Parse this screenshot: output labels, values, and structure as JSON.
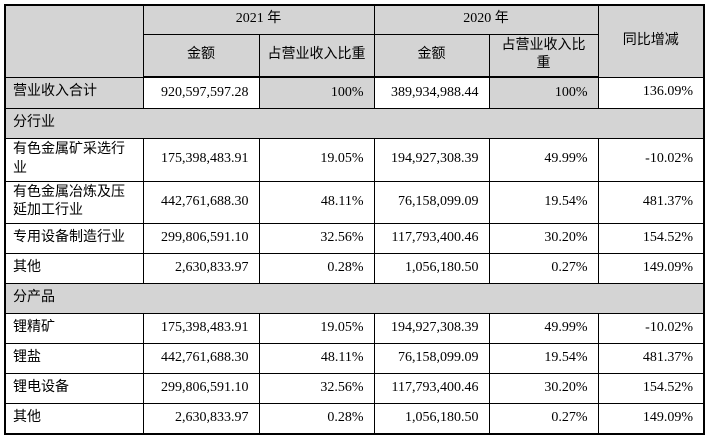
{
  "table": {
    "colors": {
      "header_bg": "#d4d4d4",
      "border": "#000000",
      "cell_bg": "#ffffff"
    },
    "header": {
      "corner": "",
      "year_2021": "2021 年",
      "year_2020": "2020 年",
      "amount_2021": "金额",
      "share_2021": "占营业收入比重",
      "amount_2020": "金额",
      "share_2020": "占营业收入比重",
      "yoy": "同比增减"
    },
    "rows": [
      {
        "type": "data",
        "shaded": true,
        "label": "营业收入合计",
        "cells": [
          "920,597,597.28",
          "100%",
          "389,934,988.44",
          "100%",
          "136.09%"
        ]
      },
      {
        "type": "section",
        "label": "分行业"
      },
      {
        "type": "data",
        "label": "有色金属矿采选行业",
        "cells": [
          "175,398,483.91",
          "19.05%",
          "194,927,308.39",
          "49.99%",
          "-10.02%"
        ]
      },
      {
        "type": "data",
        "label": "有色金属冶炼及压延加工行业",
        "cells": [
          "442,761,688.30",
          "48.11%",
          "76,158,099.09",
          "19.54%",
          "481.37%"
        ]
      },
      {
        "type": "data",
        "label": "专用设备制造行业",
        "cells": [
          "299,806,591.10",
          "32.56%",
          "117,793,400.46",
          "30.20%",
          "154.52%"
        ]
      },
      {
        "type": "data",
        "label": "其他",
        "cells": [
          "2,630,833.97",
          "0.28%",
          "1,056,180.50",
          "0.27%",
          "149.09%"
        ]
      },
      {
        "type": "section",
        "label": "分产品"
      },
      {
        "type": "data",
        "label": "锂精矿",
        "cells": [
          "175,398,483.91",
          "19.05%",
          "194,927,308.39",
          "49.99%",
          "-10.02%"
        ]
      },
      {
        "type": "data",
        "label": "锂盐",
        "cells": [
          "442,761,688.30",
          "48.11%",
          "76,158,099.09",
          "19.54%",
          "481.37%"
        ]
      },
      {
        "type": "data",
        "label": "锂电设备",
        "cells": [
          "299,806,591.10",
          "32.56%",
          "117,793,400.46",
          "30.20%",
          "154.52%"
        ]
      },
      {
        "type": "data",
        "label": "其他",
        "cells": [
          "2,630,833.97",
          "0.28%",
          "1,056,180.50",
          "0.27%",
          "149.09%"
        ]
      }
    ]
  }
}
